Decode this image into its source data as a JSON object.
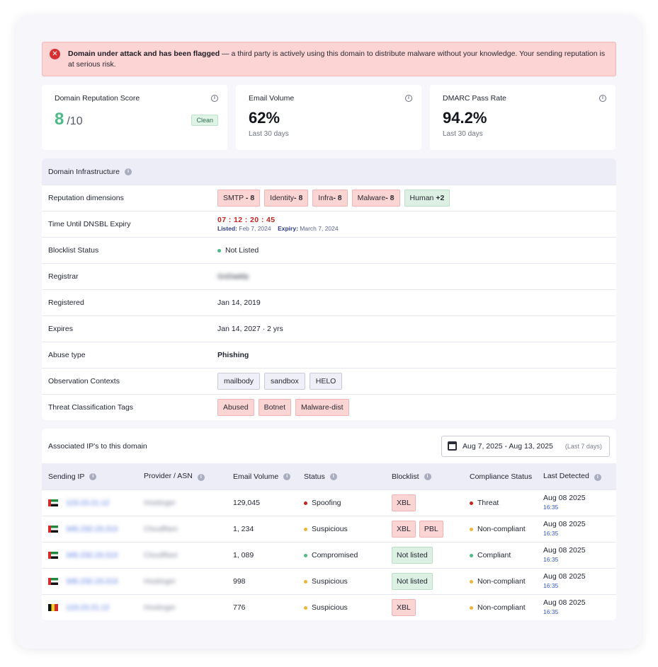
{
  "alert": {
    "title": "Domain under attack and has been flagged",
    "message": " — a third party is actively using this domain to distribute malware without your knowledge. Your sending reputation is at serious risk."
  },
  "cards": {
    "reputation": {
      "title": "Domain Reputation Score",
      "value": "8",
      "denominator": "/10",
      "badge": "Clean"
    },
    "email_volume": {
      "title": "Email Volume",
      "value": "62%",
      "sub": "Last 30 days"
    },
    "dmarc": {
      "title": "DMARC Pass Rate",
      "value": "94.2%",
      "sub": "Last 30 days"
    }
  },
  "infrastructure": {
    "title": "Domain Infrastructure",
    "rows": {
      "reputation_dimensions": {
        "label": "Reputation dimensions",
        "chips": [
          {
            "name": "SMTP",
            "score": "- 8"
          },
          {
            "name": "Identity",
            "score": "- 8"
          },
          {
            "name": "Infra",
            "score": "- 8"
          },
          {
            "name": "Malware",
            "score": "- 8"
          },
          {
            "name": "Human",
            "score": "+2"
          }
        ]
      },
      "dnsbl": {
        "label": "Time Until DNSBL Expiry",
        "countdown": "07 : 12 : 20 : 45",
        "listed_label": "Listed:",
        "listed_value": "Feb 7, 2024",
        "expiry_label": "Expiry:",
        "expiry_value": "March 7, 2024"
      },
      "blocklist": {
        "label": "Blocklist Status",
        "value": "Not Listed"
      },
      "registrar": {
        "label": "Registrar",
        "value": "GoDaddy"
      },
      "registered": {
        "label": "Registered",
        "value": "Jan 14, 2019"
      },
      "expires": {
        "label": "Expires",
        "value": "Jan 14, 2027 · 2 yrs"
      },
      "abuse": {
        "label": "Abuse type",
        "value": "Phishing"
      },
      "contexts": {
        "label": "Observation Contexts",
        "chips": [
          "mailbody",
          "sandbox",
          "HELO"
        ]
      },
      "tags": {
        "label": "Threat Classification Tags",
        "chips": [
          "Abused",
          "Botnet",
          "Malware-dist"
        ]
      }
    }
  },
  "ips": {
    "title": "Associated IP's to this domain",
    "date_range": "Aug 7, 2025 - Aug 13, 2025",
    "date_hint": "(Last 7 days)",
    "columns": {
      "ip": "Sending IP",
      "provider": "Provider / ASN",
      "volume": "Email Volume",
      "status": "Status",
      "blocklist": "Blocklist",
      "compliance": "Compliance Status",
      "last": "Last Detected"
    },
    "rows": [
      {
        "flag": "ae",
        "ip": "123.23.21.12",
        "provider": "Hostinger",
        "volume": "129,045",
        "status": "Spoofing",
        "status_color": "#c4231f",
        "blocklist": [
          "XBL"
        ],
        "blocklist_type": "red",
        "compliance": "Threat",
        "compliance_color": "#c4231f",
        "date": "Aug 08 2025",
        "time": "16:35"
      },
      {
        "flag": "ae",
        "ip": "345.232.23.213",
        "provider": "Cloudflare",
        "volume": "1, 234",
        "status": "Suspicious",
        "status_color": "#f0b43a",
        "blocklist": [
          "XBL",
          "PBL"
        ],
        "blocklist_type": "red",
        "compliance": "Non-compliant",
        "compliance_color": "#f0b43a",
        "date": "Aug 08 2025",
        "time": "16:35"
      },
      {
        "flag": "ae",
        "ip": "345.232.23.213",
        "provider": "Cloudflare",
        "volume": "1, 089",
        "status": "Compromised",
        "status_color": "#4cbb87",
        "blocklist": [
          "Not listed"
        ],
        "blocklist_type": "green",
        "compliance": "Compliant",
        "compliance_color": "#4cbb87",
        "date": "Aug 08 2025",
        "time": "16:35"
      },
      {
        "flag": "ae",
        "ip": "345.232.23.213",
        "provider": "Hostinger",
        "volume": "998",
        "status": "Suspicious",
        "status_color": "#f0b43a",
        "blocklist": [
          "Not listed"
        ],
        "blocklist_type": "green",
        "compliance": "Non-compliant",
        "compliance_color": "#f0b43a",
        "date": "Aug 08 2025",
        "time": "16:35"
      },
      {
        "flag": "be",
        "ip": "123.23.21.12",
        "provider": "Hostinger",
        "volume": "776",
        "status": "Suspicious",
        "status_color": "#f0b43a",
        "blocklist": [
          "XBL"
        ],
        "blocklist_type": "red",
        "compliance": "Non-compliant",
        "compliance_color": "#f0b43a",
        "date": "Aug 08 2025",
        "time": "16:35"
      }
    ]
  }
}
